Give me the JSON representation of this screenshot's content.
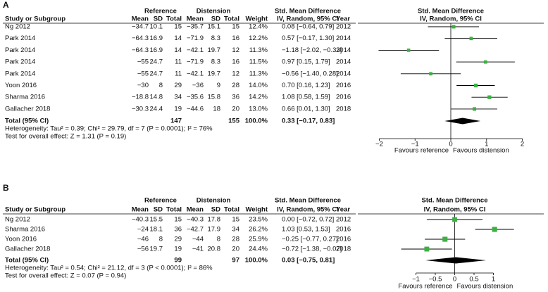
{
  "chart_data": [
    {
      "type": "forest",
      "panel_label": "A",
      "group_headers": {
        "reference": "Reference",
        "distension": "Distension",
        "table_effect": "Std. Mean Difference",
        "plot_effect": "Std. Mean Difference"
      },
      "columns": [
        "Study or Subgroup",
        "Mean",
        "SD",
        "Total",
        "Mean",
        "SD",
        "Total",
        "Weight",
        "IV, Random, 95% CI",
        "Year",
        "IV, Random, 95% CI"
      ],
      "studies": [
        {
          "name": "Ng 2012",
          "ref_mean": "−34.7",
          "ref_sd": "10.1",
          "ref_total": "15",
          "dis_mean": "−35.7",
          "dis_sd": "15.1",
          "dis_total": "15",
          "weight": {
            "value": 12.4,
            "label": "12.4%"
          },
          "smd": {
            "value": 0.08,
            "lower": -0.64,
            "upper": 0.79,
            "label": "0.08 [−0.64, 0.79]"
          },
          "year": "2012"
        },
        {
          "name": "Park 2014",
          "ref_mean": "−64.3",
          "ref_sd": "16.9",
          "ref_total": "14",
          "dis_mean": "−71.9",
          "dis_sd": "8.3",
          "dis_total": "16",
          "weight": {
            "value": 12.2,
            "label": "12.2%"
          },
          "smd": {
            "value": 0.57,
            "lower": -0.17,
            "upper": 1.3,
            "label": "0.57 [−0.17, 1.30]"
          },
          "year": "2014"
        },
        {
          "name": "Park 2014",
          "ref_mean": "−64.3",
          "ref_sd": "16.9",
          "ref_total": "14",
          "dis_mean": "−42.1",
          "dis_sd": "19.7",
          "dis_total": "12",
          "weight": {
            "value": 11.3,
            "label": "11.3%"
          },
          "smd": {
            "value": -1.18,
            "lower": -2.02,
            "upper": -0.33,
            "label": "−1.18 [−2.02, −0.33]"
          },
          "year": "2014"
        },
        {
          "name": "Park 2014",
          "ref_mean": "−55",
          "ref_sd": "24.7",
          "ref_total": "11",
          "dis_mean": "−71.9",
          "dis_sd": "8.3",
          "dis_total": "16",
          "weight": {
            "value": 11.5,
            "label": "11.5%"
          },
          "smd": {
            "value": 0.97,
            "lower": 0.15,
            "upper": 1.79,
            "label": "0.97 [0.15, 1.79]"
          },
          "year": "2014"
        },
        {
          "name": "Park 2014",
          "ref_mean": "−55",
          "ref_sd": "24.7",
          "ref_total": "11",
          "dis_mean": "−42.1",
          "dis_sd": "19.7",
          "dis_total": "12",
          "weight": {
            "value": 11.3,
            "label": "11.3%"
          },
          "smd": {
            "value": -0.56,
            "lower": -1.4,
            "upper": 0.28,
            "label": "−0.56 [−1.40, 0.28]"
          },
          "year": "2014"
        },
        {
          "name": "Yoon 2016",
          "ref_mean": "−30",
          "ref_sd": "8",
          "ref_total": "29",
          "dis_mean": "−36",
          "dis_sd": "9",
          "dis_total": "28",
          "weight": {
            "value": 14.0,
            "label": "14.0%"
          },
          "smd": {
            "value": 0.7,
            "lower": 0.16,
            "upper": 1.23,
            "label": "0.70 [0.16, 1.23]"
          },
          "year": "2016"
        },
        {
          "name": "Sharma 2016",
          "ref_mean": "−18.8",
          "ref_sd": "14.8",
          "ref_total": "34",
          "dis_mean": "−35.6",
          "dis_sd": "15.8",
          "dis_total": "36",
          "weight": {
            "value": 14.2,
            "label": "14.2%"
          },
          "smd": {
            "value": 1.08,
            "lower": 0.58,
            "upper": 1.59,
            "label": "1.08 [0.58, 1.59]"
          },
          "year": "2016"
        },
        {
          "name": "Gallacher 2018",
          "ref_mean": "−30.3",
          "ref_sd": "24.4",
          "ref_total": "19",
          "dis_mean": "−44.6",
          "dis_sd": "18",
          "dis_total": "20",
          "weight": {
            "value": 13.0,
            "label": "13.0%"
          },
          "smd": {
            "value": 0.66,
            "lower": 0.01,
            "upper": 1.3,
            "label": "0.66 [0.01, 1.30]"
          },
          "year": "2018"
        }
      ],
      "total": {
        "name": "Total (95% CI)",
        "ref_total": "147",
        "dis_total": "155",
        "weight": "100.0%",
        "smd": {
          "value": 0.33,
          "lower": -0.17,
          "upper": 0.83,
          "label": "0.33 [−0.17, 0.83]"
        }
      },
      "heterogeneity": "Heterogeneity: Tau² = 0.39; Chi² = 29.79, df = 7 (P = 0.0001); I² = 76%",
      "overall_effect": "Test for overall effect: Z = 1.31 (P = 0.19)",
      "xlim": [
        -2.6,
        2.6
      ],
      "xticks": [
        {
          "value": -2,
          "label": "−2"
        },
        {
          "value": -1,
          "label": "−1"
        },
        0,
        1,
        2
      ],
      "favours_left": "Favours reference",
      "favours_right": "Favours distension",
      "color": "#3cb043"
    },
    {
      "type": "forest",
      "panel_label": "B",
      "group_headers": {
        "reference": "Reference",
        "distension": "Distension",
        "table_effect": "Std. Mean Difference",
        "plot_effect": "Std. Mean Difference"
      },
      "columns": [
        "Study or Subgroup",
        "Mean",
        "SD",
        "Total",
        "Mean",
        "SD",
        "Total",
        "Weight",
        "IV, Random, 95% CI",
        "Year",
        "IV, Random, 95% CI"
      ],
      "studies": [
        {
          "name": "Ng 2012",
          "ref_mean": "−40.3",
          "ref_sd": "15.5",
          "ref_total": "15",
          "dis_mean": "−40.3",
          "dis_sd": "17.8",
          "dis_total": "15",
          "weight": {
            "value": 23.5,
            "label": "23.5%"
          },
          "smd": {
            "value": 0.0,
            "lower": -0.72,
            "upper": 0.72,
            "label": "0.00 [−0.72, 0.72]"
          },
          "year": "2012"
        },
        {
          "name": "Sharma 2016",
          "ref_mean": "−24",
          "ref_sd": "18.1",
          "ref_total": "36",
          "dis_mean": "−42.7",
          "dis_sd": "17.9",
          "dis_total": "34",
          "weight": {
            "value": 26.2,
            "label": "26.2%"
          },
          "smd": {
            "value": 1.03,
            "lower": 0.53,
            "upper": 1.53,
            "label": "1.03 [0.53, 1.53]"
          },
          "year": "2016"
        },
        {
          "name": "Yoon 2016",
          "ref_mean": "−46",
          "ref_sd": "8",
          "ref_total": "29",
          "dis_mean": "−44",
          "dis_sd": "8",
          "dis_total": "28",
          "weight": {
            "value": 25.9,
            "label": "25.9%"
          },
          "smd": {
            "value": -0.25,
            "lower": -0.77,
            "upper": 0.27,
            "label": "−0.25 [−0.77, 0.27]"
          },
          "year": "2016"
        },
        {
          "name": "Gallacher 2018",
          "ref_mean": "−56",
          "ref_sd": "19.7",
          "ref_total": "19",
          "dis_mean": "−41",
          "dis_sd": "20.8",
          "dis_total": "20",
          "weight": {
            "value": 24.4,
            "label": "24.4%"
          },
          "smd": {
            "value": -0.72,
            "lower": -1.38,
            "upper": -0.07,
            "label": "−0.72 [−1.38, −0.07]"
          },
          "year": "2018"
        }
      ],
      "total": {
        "name": "Total (95% CI)",
        "ref_total": "99",
        "dis_total": "97",
        "weight": "100.0%",
        "smd": {
          "value": 0.03,
          "lower": -0.75,
          "upper": 0.81,
          "label": "0.03 [−0.75, 0.81]"
        }
      },
      "heterogeneity": "Heterogeneity: Tau² = 0.54; Chi² = 21.12, df = 3 (P < 0.0001); I² = 86%",
      "overall_effect": "Test for overall effect: Z = 0.07 (P = 0.94)",
      "xlim": [
        -2.5,
        2.3
      ],
      "xticks": [
        {
          "value": -1,
          "label": "−1"
        },
        {
          "value": -0.5,
          "label": "−0.5"
        },
        0,
        0.5,
        1
      ],
      "favours_left": "Favours reference",
      "favours_right": "Favours distension",
      "color": "#3cb043"
    }
  ]
}
